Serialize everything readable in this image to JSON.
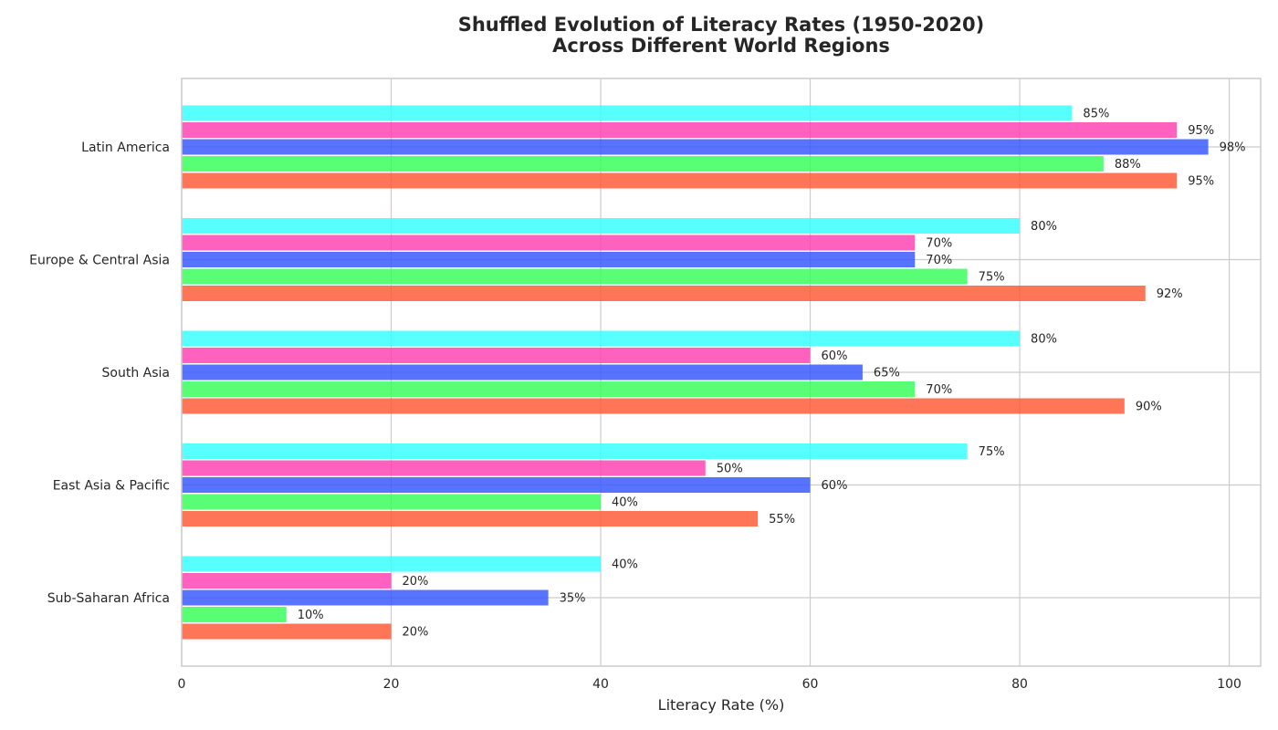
{
  "chart_data": {
    "type": "bar",
    "orientation": "horizontal",
    "title": "Shuffled Evolution of Literacy Rates (1950-2020)",
    "subtitle": "Across Different World Regions",
    "xlabel": "Literacy Rate (%)",
    "ylabel": "",
    "xlim": [
      0,
      103
    ],
    "x_ticks": [
      "0",
      "20",
      "40",
      "60",
      "80",
      "100"
    ],
    "grid": true,
    "legend": false,
    "categories": [
      "Latin America",
      "Europe & Central Asia",
      "South Asia",
      "East Asia & Pacific",
      "Sub-Saharan Africa"
    ],
    "series": [
      {
        "color": "#33ffff",
        "values": [
          85,
          80,
          80,
          75,
          40
        ]
      },
      {
        "color": "#ff3fb0",
        "values": [
          95,
          70,
          60,
          50,
          20
        ]
      },
      {
        "color": "#3355ff",
        "values": [
          98,
          70,
          65,
          60,
          35
        ]
      },
      {
        "color": "#33ff55",
        "values": [
          88,
          75,
          70,
          40,
          10
        ]
      },
      {
        "color": "#ff5733",
        "values": [
          95,
          92,
          90,
          55,
          20
        ]
      }
    ],
    "value_label_suffix": "%"
  }
}
